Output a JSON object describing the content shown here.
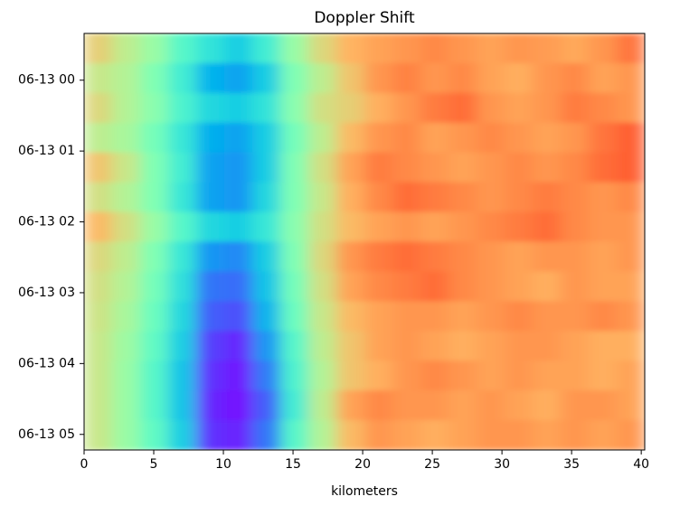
{
  "chart_data": {
    "type": "heatmap",
    "title": "Doppler Shift",
    "x_label": "kilometers",
    "colormap": "rainbow",
    "xlim": [
      0,
      40.25
    ],
    "xticks": [
      0,
      5,
      10,
      15,
      20,
      25,
      30,
      35,
      40
    ],
    "ylim": [
      5.22,
      -0.66
    ],
    "yticks": [
      {
        "value": 0,
        "label": "06-13 00"
      },
      {
        "value": 1,
        "label": "06-13 01"
      },
      {
        "value": 2,
        "label": "06-13 02"
      },
      {
        "value": 3,
        "label": "06-13 03"
      },
      {
        "value": 4,
        "label": "06-13 04"
      },
      {
        "value": 5,
        "label": "06-13 05"
      }
    ],
    "values": [
      [
        0.7,
        0.62,
        0.55,
        0.42,
        0.35,
        0.3,
        0.38,
        0.55,
        0.68,
        0.75,
        0.78,
        0.8,
        0.82,
        0.8,
        0.78,
        0.8,
        0.79,
        0.77,
        0.8,
        0.85
      ],
      [
        0.64,
        0.6,
        0.5,
        0.38,
        0.25,
        0.22,
        0.3,
        0.5,
        0.62,
        0.72,
        0.8,
        0.83,
        0.8,
        0.82,
        0.78,
        0.76,
        0.8,
        0.82,
        0.78,
        0.8
      ],
      [
        0.68,
        0.6,
        0.52,
        0.4,
        0.32,
        0.3,
        0.35,
        0.52,
        0.66,
        0.7,
        0.76,
        0.8,
        0.84,
        0.86,
        0.8,
        0.78,
        0.8,
        0.84,
        0.82,
        0.8
      ],
      [
        0.62,
        0.58,
        0.48,
        0.36,
        0.24,
        0.22,
        0.3,
        0.48,
        0.62,
        0.74,
        0.8,
        0.82,
        0.78,
        0.8,
        0.82,
        0.8,
        0.78,
        0.8,
        0.85,
        0.88
      ],
      [
        0.72,
        0.64,
        0.5,
        0.38,
        0.22,
        0.2,
        0.3,
        0.5,
        0.66,
        0.78,
        0.84,
        0.82,
        0.8,
        0.78,
        0.8,
        0.82,
        0.8,
        0.82,
        0.86,
        0.88
      ],
      [
        0.66,
        0.6,
        0.5,
        0.36,
        0.22,
        0.2,
        0.32,
        0.5,
        0.64,
        0.76,
        0.82,
        0.86,
        0.84,
        0.82,
        0.8,
        0.82,
        0.84,
        0.82,
        0.8,
        0.82
      ],
      [
        0.74,
        0.66,
        0.55,
        0.42,
        0.32,
        0.3,
        0.36,
        0.52,
        0.66,
        0.74,
        0.78,
        0.8,
        0.78,
        0.8,
        0.82,
        0.84,
        0.86,
        0.82,
        0.8,
        0.8
      ],
      [
        0.68,
        0.62,
        0.5,
        0.36,
        0.2,
        0.18,
        0.3,
        0.5,
        0.68,
        0.8,
        0.84,
        0.86,
        0.84,
        0.82,
        0.8,
        0.78,
        0.8,
        0.8,
        0.78,
        0.8
      ],
      [
        0.66,
        0.6,
        0.48,
        0.34,
        0.15,
        0.14,
        0.28,
        0.48,
        0.66,
        0.78,
        0.82,
        0.84,
        0.86,
        0.82,
        0.8,
        0.78,
        0.76,
        0.8,
        0.78,
        0.78
      ],
      [
        0.65,
        0.58,
        0.46,
        0.32,
        0.12,
        0.1,
        0.25,
        0.46,
        0.64,
        0.74,
        0.78,
        0.8,
        0.8,
        0.78,
        0.8,
        0.82,
        0.8,
        0.8,
        0.82,
        0.8
      ],
      [
        0.64,
        0.56,
        0.44,
        0.3,
        0.08,
        0.05,
        0.2,
        0.42,
        0.62,
        0.72,
        0.78,
        0.8,
        0.78,
        0.76,
        0.78,
        0.8,
        0.8,
        0.78,
        0.76,
        0.76
      ],
      [
        0.64,
        0.55,
        0.42,
        0.28,
        0.06,
        0.03,
        0.16,
        0.4,
        0.6,
        0.72,
        0.76,
        0.8,
        0.82,
        0.8,
        0.78,
        0.8,
        0.78,
        0.78,
        0.76,
        0.78
      ],
      [
        0.64,
        0.55,
        0.42,
        0.28,
        0.05,
        0.02,
        0.12,
        0.38,
        0.62,
        0.78,
        0.82,
        0.8,
        0.8,
        0.78,
        0.8,
        0.78,
        0.76,
        0.8,
        0.8,
        0.78
      ],
      [
        0.64,
        0.55,
        0.44,
        0.3,
        0.06,
        0.04,
        0.15,
        0.42,
        0.6,
        0.74,
        0.8,
        0.78,
        0.76,
        0.78,
        0.8,
        0.8,
        0.78,
        0.8,
        0.78,
        0.8
      ]
    ]
  }
}
